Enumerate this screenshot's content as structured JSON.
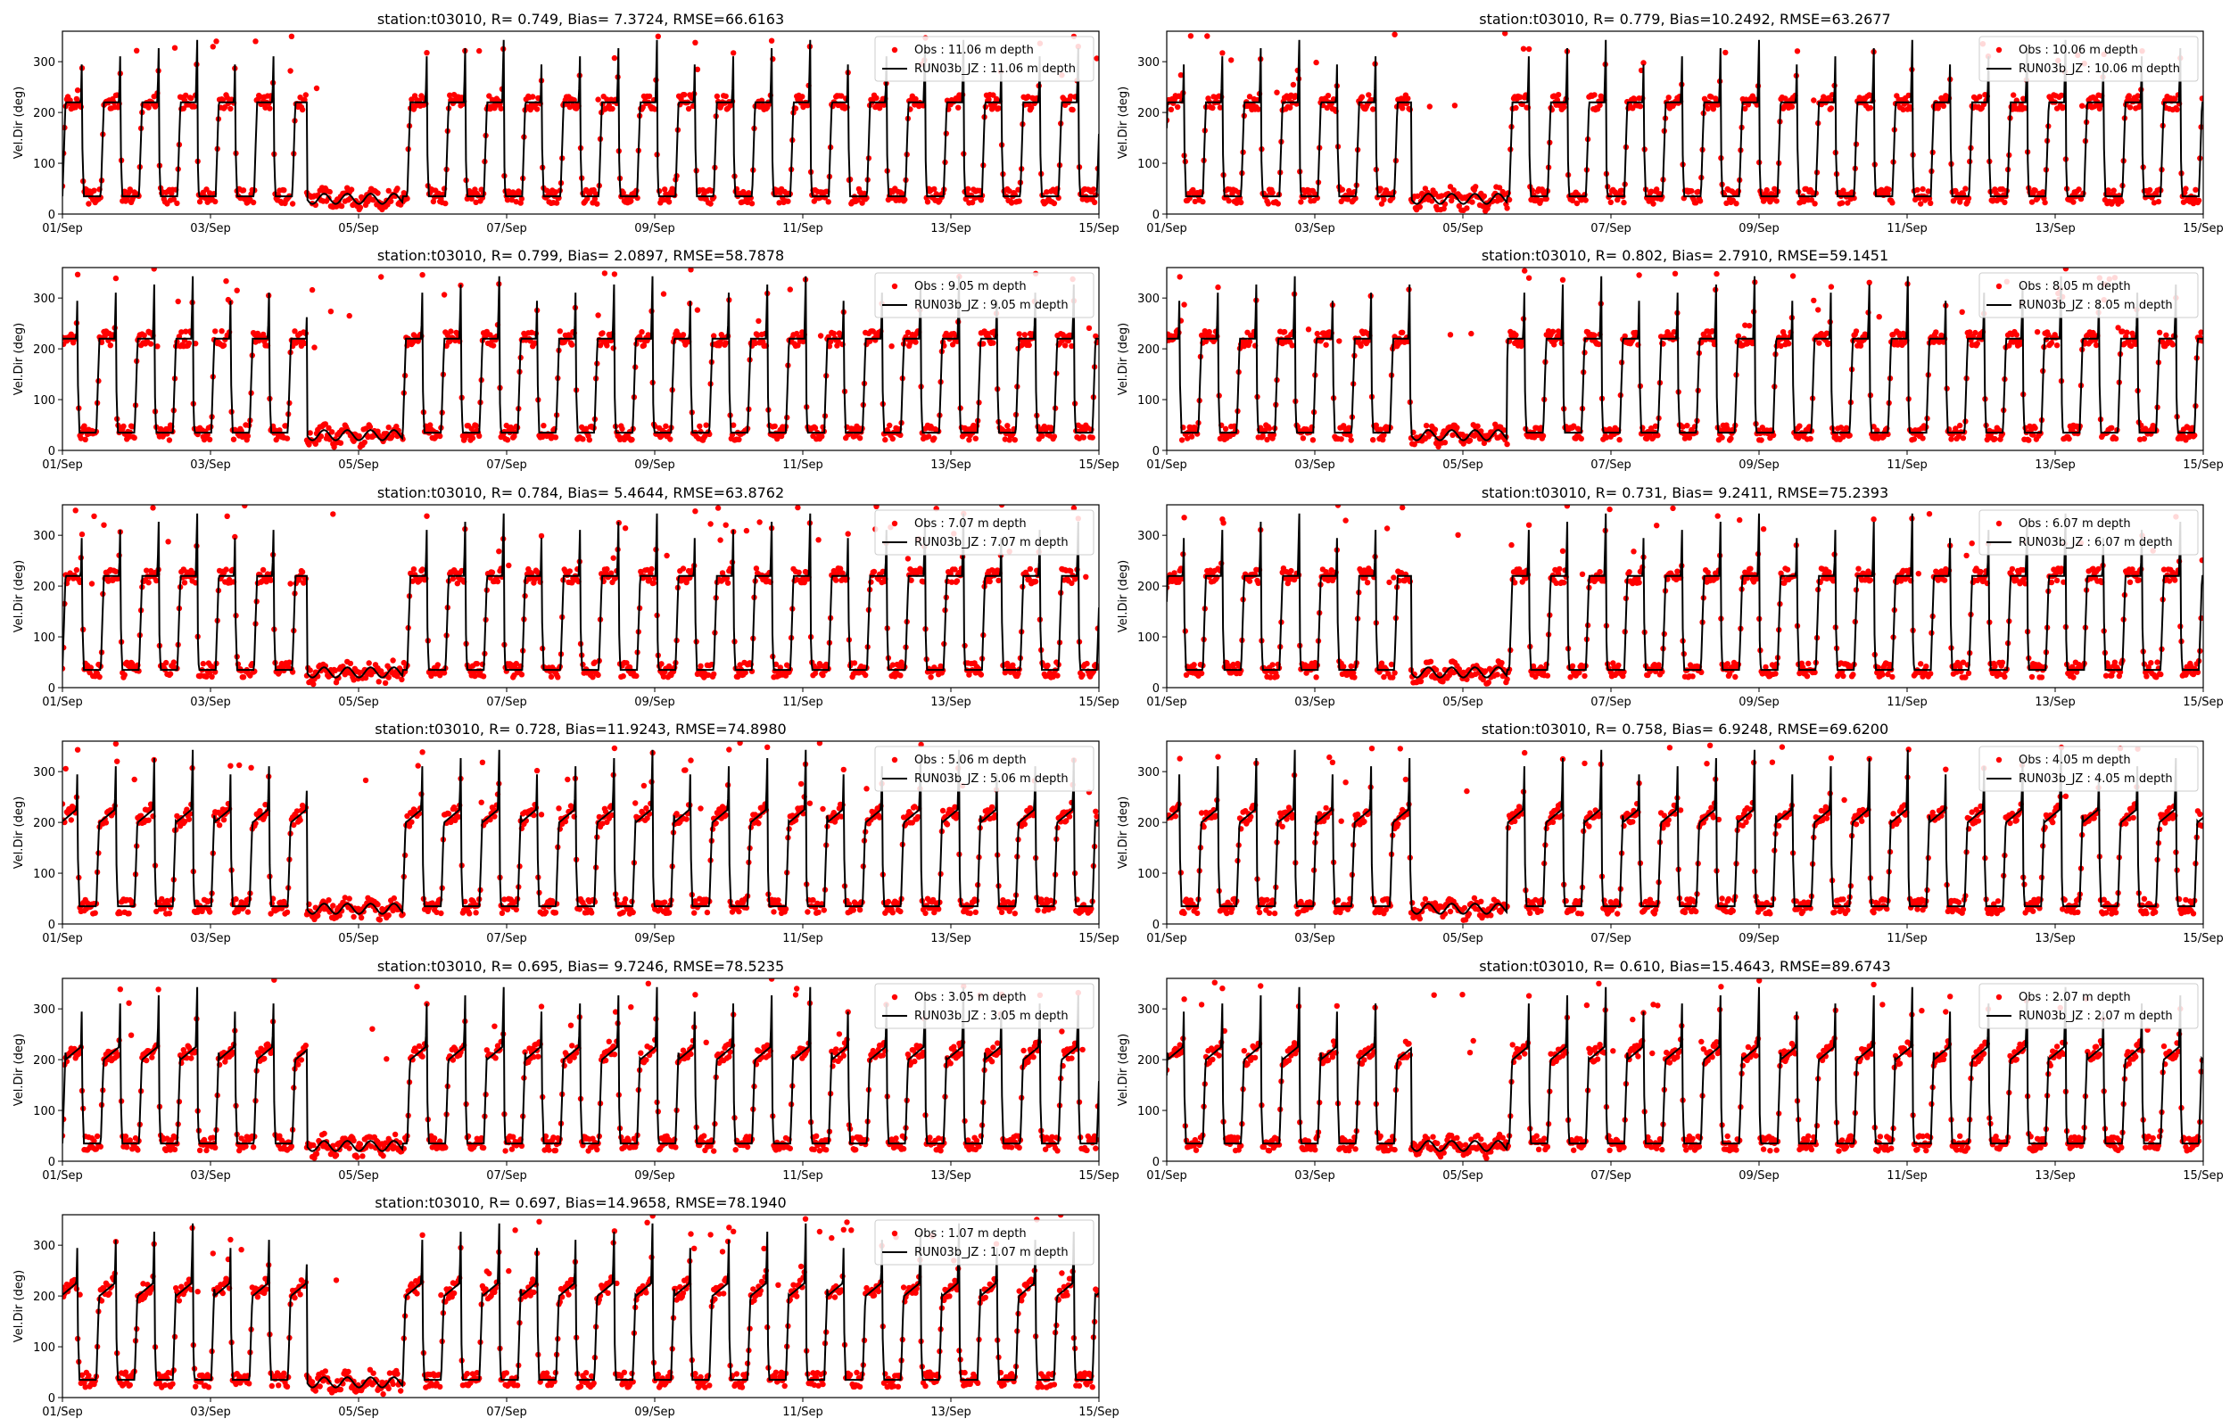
{
  "figure": {
    "colors": {
      "obs": "#ff0000",
      "model": "#000000",
      "axes": "#000000",
      "background": "#ffffff"
    },
    "ylabel": "Vel.Dir (deg)",
    "x_ticks": [
      "01/Sep",
      "03/Sep",
      "05/Sep",
      "07/Sep",
      "09/Sep",
      "11/Sep",
      "13/Sep",
      "15/Sep"
    ],
    "y_ticks": [
      "0",
      "100",
      "200",
      "300"
    ],
    "legend_position": "top-right"
  },
  "chart_data": [
    {
      "type": "scatter+line",
      "title": "station:t03010, R= 0.749, Bias= 7.3724, RMSE=66.6163",
      "obs_label": "Obs : 11.06 m depth",
      "model_label": "RUN03b_JZ : 11.06 m depth",
      "ylim": [
        0,
        360
      ],
      "x_range_days": [
        0,
        14
      ],
      "regime": "normal"
    },
    {
      "type": "scatter+line",
      "title": "station:t03010, R= 0.779, Bias=10.2492, RMSE=63.2677",
      "obs_label": "Obs : 10.06 m depth",
      "model_label": "RUN03b_JZ : 10.06 m depth",
      "ylim": [
        0,
        360
      ],
      "x_range_days": [
        0,
        14
      ],
      "regime": "normal"
    },
    {
      "type": "scatter+line",
      "title": "station:t03010, R= 0.799, Bias= 2.0897, RMSE=58.7878",
      "obs_label": "Obs : 9.05 m depth",
      "model_label": "RUN03b_JZ : 9.05 m depth",
      "ylim": [
        0,
        360
      ],
      "x_range_days": [
        0,
        14
      ],
      "regime": "normal"
    },
    {
      "type": "scatter+line",
      "title": "station:t03010, R= 0.802, Bias= 2.7910, RMSE=59.1451",
      "obs_label": "Obs : 8.05 m depth",
      "model_label": "RUN03b_JZ : 8.05 m depth",
      "ylim": [
        0,
        360
      ],
      "x_range_days": [
        0,
        14
      ],
      "regime": "normal"
    },
    {
      "type": "scatter+line",
      "title": "station:t03010, R= 0.784, Bias= 5.4644, RMSE=63.8762",
      "obs_label": "Obs : 7.07 m depth",
      "model_label": "RUN03b_JZ : 7.07 m depth",
      "ylim": [
        0,
        360
      ],
      "x_range_days": [
        0,
        14
      ],
      "regime": "normal"
    },
    {
      "type": "scatter+line",
      "title": "station:t03010, R= 0.731, Bias= 9.2411, RMSE=75.2393",
      "obs_label": "Obs : 6.07 m depth",
      "model_label": "RUN03b_JZ : 6.07 m depth",
      "ylim": [
        0,
        360
      ],
      "x_range_days": [
        0,
        14
      ],
      "regime": "normal"
    },
    {
      "type": "scatter+line",
      "title": "station:t03010, R= 0.728, Bias=11.9243, RMSE=74.8980",
      "obs_label": "Obs : 5.06 m depth",
      "model_label": "RUN03b_JZ : 5.06 m depth",
      "ylim": [
        0,
        360
      ],
      "x_range_days": [
        0,
        14
      ],
      "regime": "ramp"
    },
    {
      "type": "scatter+line",
      "title": "station:t03010, R= 0.758, Bias= 6.9248, RMSE=69.6200",
      "obs_label": "Obs : 4.05 m depth",
      "model_label": "RUN03b_JZ : 4.05 m depth",
      "ylim": [
        0,
        360
      ],
      "x_range_days": [
        0,
        14
      ],
      "regime": "ramp"
    },
    {
      "type": "scatter+line",
      "title": "station:t03010, R= 0.695, Bias= 9.7246, RMSE=78.5235",
      "obs_label": "Obs : 3.05 m depth",
      "model_label": "RUN03b_JZ : 3.05 m depth",
      "ylim": [
        0,
        360
      ],
      "x_range_days": [
        0,
        14
      ],
      "regime": "ramp"
    },
    {
      "type": "scatter+line",
      "title": "station:t03010, R= 0.610, Bias=15.4643, RMSE=89.6743",
      "obs_label": "Obs : 2.07 m depth",
      "model_label": "RUN03b_JZ : 2.07 m depth",
      "ylim": [
        0,
        360
      ],
      "x_range_days": [
        0,
        14
      ],
      "regime": "ramp"
    },
    {
      "type": "scatter+line",
      "title": "station:t03010, R= 0.697, Bias=14.9658, RMSE=78.1940",
      "obs_label": "Obs : 1.07 m depth",
      "model_label": "RUN03b_JZ : 1.07 m depth",
      "ylim": [
        0,
        360
      ],
      "x_range_days": [
        0,
        14
      ],
      "regime": "ramp"
    }
  ]
}
